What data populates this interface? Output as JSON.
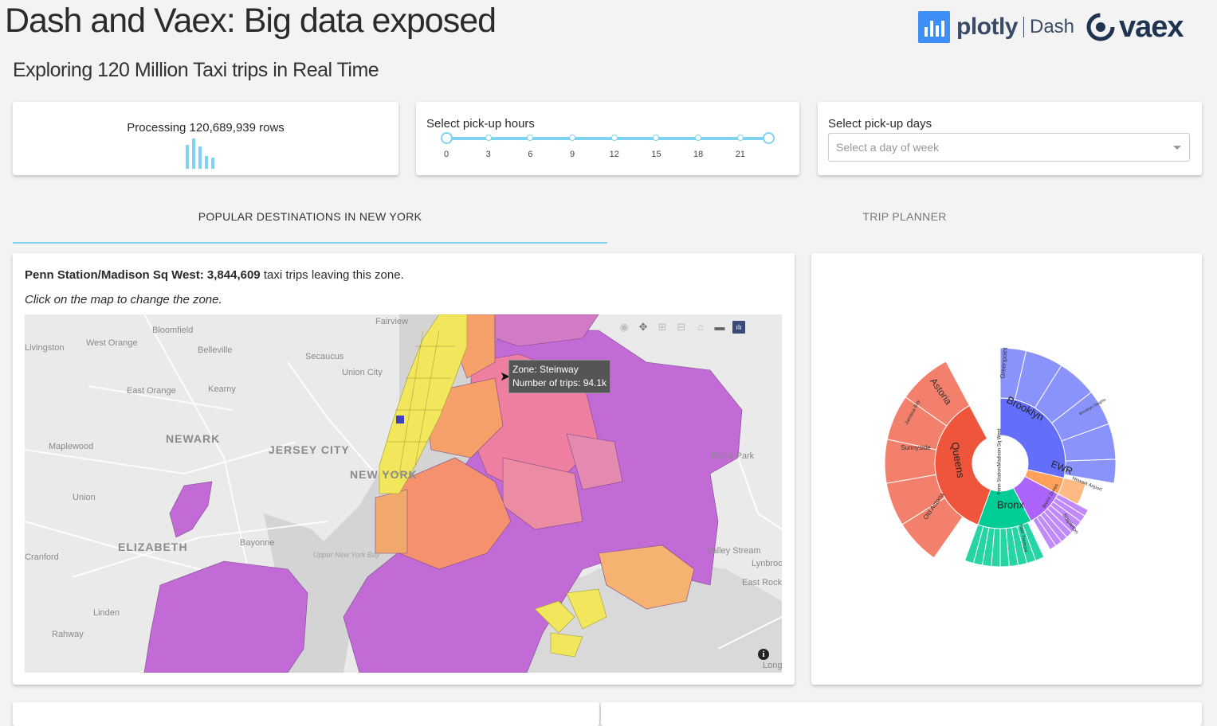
{
  "header": {
    "title": "Dash and Vaex: Big data exposed",
    "subtitle": "Exploring 120 Million Taxi trips in Real Time",
    "plotly_logo_text": "plotly",
    "dash_logo_text": "Dash",
    "vaex_logo_text": "vaex"
  },
  "processing": {
    "text": "Processing 120,689,939 rows"
  },
  "hours": {
    "label": "Select pick-up hours",
    "marks": [
      "0",
      "3",
      "6",
      "9",
      "12",
      "15",
      "18",
      "21"
    ],
    "range": [
      0,
      23
    ]
  },
  "days": {
    "label": "Select pick-up days",
    "placeholder": "Select a day of week",
    "selected": ""
  },
  "tabs": [
    {
      "label": "POPULAR DESTINATIONS IN NEW YORK",
      "active": true
    },
    {
      "label": "TRIP PLANNER",
      "active": false
    }
  ],
  "zone_info": {
    "zone": "Penn Station/Madison Sq West:",
    "count": "3,844,609",
    "suffix": " taxi trips leaving this zone.",
    "hint": "Click on the map to change the zone."
  },
  "map": {
    "tooltip_zone": "Zone: Steinway",
    "tooltip_trips": "Number of trips: 94.1k",
    "labels": [
      "Fairview",
      "Bloomfield",
      "West Orange",
      "Belleville",
      "Secaucus",
      "Union City",
      "East Orange",
      "Kearny",
      "NEWARK",
      "JERSEY CITY",
      "NEW YORK",
      "Maplewood",
      "Union",
      "ELIZABETH",
      "Bayonne",
      "Upper New York Bay",
      "Cranford",
      "Linden",
      "Rahway",
      "Floral Park",
      "Valley Stream",
      "Lynbrook",
      "East Rockaway",
      "Long Beach",
      "Livingston"
    ],
    "modebar_icons": [
      "camera-icon",
      "pan-icon",
      "zoom-in-icon",
      "zoom-out-icon",
      "reset-view-icon",
      "toggle-hover-icon",
      "plotly-logo-icon"
    ],
    "colors": {
      "manhattan": "#f2e65c",
      "mid": "#f6a16a",
      "high": "#ef7fa0",
      "low": "#c26ad6",
      "selected": "#4040c0"
    }
  },
  "sunburst": {
    "center_label": "Penn Station/Madison Sq West",
    "boroughs": [
      {
        "name": "Brooklyn",
        "color": "#636efa"
      },
      {
        "name": "Queens",
        "color": "#ef553b"
      },
      {
        "name": "Bronx",
        "color": "#00cc96"
      },
      {
        "name": "EWR",
        "color": "#ffa15a"
      },
      {
        "name": "Staten Island",
        "color": "#ab63fa"
      }
    ],
    "zone_labels": [
      "Greenpoint",
      "Brooklyn Heights",
      "Astoria",
      "Jamaica Bay",
      "Sunnyside",
      "Old Astoria",
      "Newark Airport",
      "Stapleton",
      "Bronx Zones",
      "East Tremont"
    ]
  }
}
